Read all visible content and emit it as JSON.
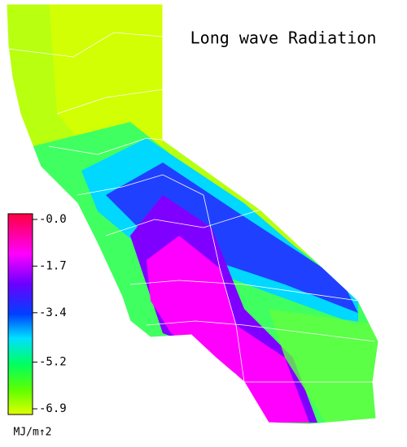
{
  "title": "Long wave Radiation",
  "colorbar": {
    "range": [
      -6.9,
      0
    ],
    "ticks": [
      {
        "value": 0,
        "label": "-0.0"
      },
      -1.7,
      -3.4,
      -5.2,
      -6.9
    ],
    "unit": "MJ/m↑2"
  }
}
